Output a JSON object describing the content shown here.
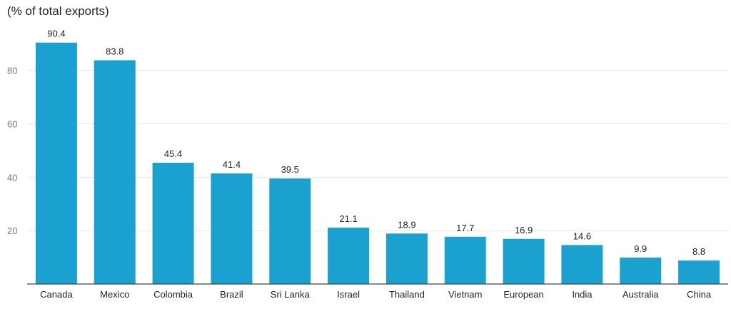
{
  "chart_data": {
    "type": "bar",
    "ylabel": "(% of total exports)",
    "categories": [
      "Canada",
      "Mexico",
      "Colombia",
      "Brazil",
      "Sri Lanka",
      "Israel",
      "Thailand",
      "Vietnam",
      "European",
      "India",
      "Australia",
      "China"
    ],
    "values": [
      90.4,
      83.8,
      45.4,
      41.4,
      39.5,
      21.1,
      18.9,
      17.7,
      16.9,
      14.6,
      9.9,
      8.8
    ],
    "data_labels": [
      "90.4",
      "83.8",
      "45.4",
      "41.4",
      "39.5",
      "21.1",
      "18.9",
      "17.7",
      "16.9",
      "14.6",
      "9.9",
      "8.8"
    ],
    "yticks": [
      20,
      40,
      60,
      80
    ],
    "ylim": [
      0,
      95
    ],
    "grid": true,
    "bar_color": "#1ba1d0",
    "grid_color": "#e6e6e6",
    "axis_color": "#444444",
    "label_color": "#222222",
    "tick_color": "#777777"
  }
}
